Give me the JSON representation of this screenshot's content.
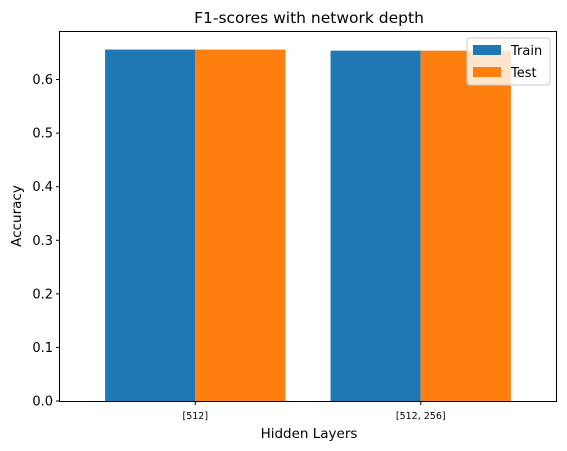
{
  "chart_data": {
    "type": "bar",
    "title": "F1-scores with network depth",
    "xlabel": "Hidden Layers",
    "ylabel": "Accuracy",
    "categories": [
      "[512]",
      "[512, 256]"
    ],
    "series": [
      {
        "name": "Train",
        "values": [
          0.656,
          0.654
        ],
        "color": "#1f77b4"
      },
      {
        "name": "Test",
        "values": [
          0.656,
          0.654
        ],
        "color": "#ff7f0e"
      }
    ],
    "yticks": [
      0.0,
      0.1,
      0.2,
      0.3,
      0.4,
      0.5,
      0.6
    ],
    "ylim": [
      0,
      0.6888
    ],
    "grid": false,
    "legend_position": "top-right"
  }
}
